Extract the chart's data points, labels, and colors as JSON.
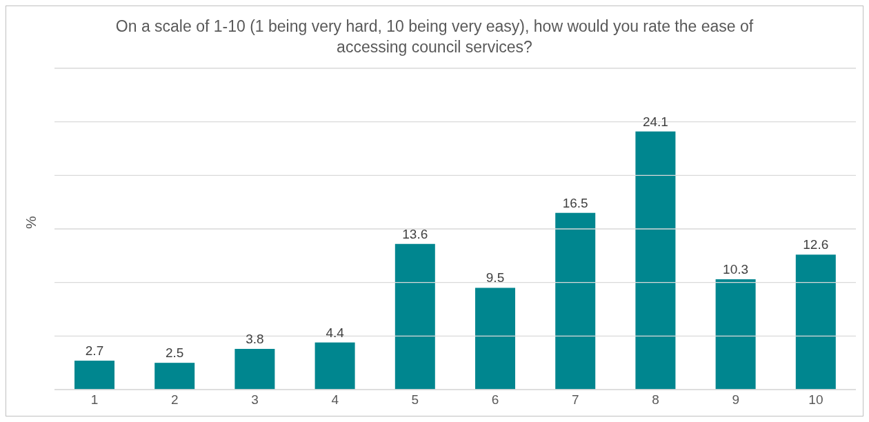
{
  "chart_data": {
    "type": "bar",
    "title": "On a scale of 1-10 (1 being very hard, 10 being very easy), how would you rate the ease of accessing council services?",
    "ylabel": "%",
    "categories": [
      "1",
      "2",
      "3",
      "4",
      "5",
      "6",
      "7",
      "8",
      "9",
      "10"
    ],
    "values": [
      2.7,
      2.5,
      3.8,
      4.4,
      13.6,
      9.5,
      16.5,
      24.1,
      10.3,
      12.6
    ],
    "color": "#00868f",
    "ylim": [
      0,
      30
    ],
    "yticks": [
      {
        "value": 0,
        "label": null
      },
      {
        "value": 5,
        "label": null
      },
      {
        "value": 10,
        "label": null
      },
      {
        "value": 15,
        "label": null
      },
      {
        "value": 20,
        "label": null
      },
      {
        "value": 25,
        "label": null
      },
      {
        "value": 30,
        "label": null
      }
    ],
    "tick_labels": "x",
    "grid": "y",
    "data_labels": true
  }
}
